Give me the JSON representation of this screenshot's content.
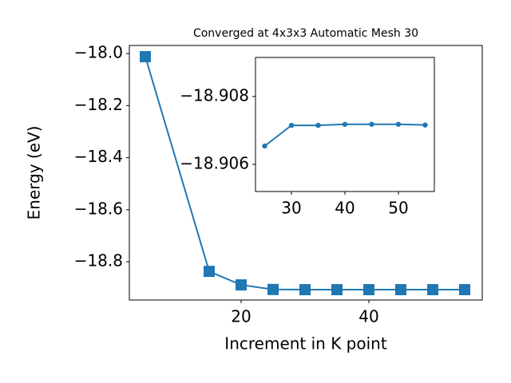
{
  "chart_data": [
    {
      "type": "line",
      "title": "Converged at 4x3x3 Automatic Mesh 30",
      "x_label": "Increment in K point",
      "y_label": "Energy (eV)",
      "x": [
        5,
        15,
        20,
        25,
        30,
        35,
        40,
        45,
        50,
        55
      ],
      "series": [
        {
          "color": "#1f77b4",
          "marker": "square",
          "values": [
            -18.012,
            -18.837,
            -18.889,
            -18.9065,
            -18.9072,
            -18.9072,
            -18.9072,
            -18.9072,
            -18.9072,
            -18.9072
          ]
        }
      ],
      "xlim": [
        2.5,
        57.75
      ],
      "xticks": [
        20,
        40
      ],
      "ylim": [
        -18.947,
        -17.969
      ],
      "yticks": [
        {
          "value": -18.8,
          "label": "−18.8"
        },
        {
          "value": -18.6,
          "label": "−18.6"
        },
        {
          "value": -18.4,
          "label": "−18.4"
        },
        {
          "value": -18.2,
          "label": "−18.2"
        },
        {
          "value": -18.0,
          "label": "−18.0"
        }
      ]
    },
    {
      "type": "line",
      "x": [
        25,
        30,
        35,
        40,
        45,
        50,
        55
      ],
      "series": [
        {
          "color": "#1f77b4",
          "marker": "circle",
          "values": [
            -18.90654,
            -18.90715,
            -18.90715,
            -18.90718,
            -18.90718,
            -18.90718,
            -18.90716
          ]
        }
      ],
      "xlim": [
        23.28,
        56.72
      ],
      "xticks": [
        30,
        40,
        50
      ],
      "ylim": [
        -18.9052,
        -18.90915
      ],
      "yticks": [
        {
          "value": -18.906,
          "label": "−18.906"
        },
        {
          "value": -18.908,
          "label": "−18.908"
        }
      ]
    }
  ]
}
